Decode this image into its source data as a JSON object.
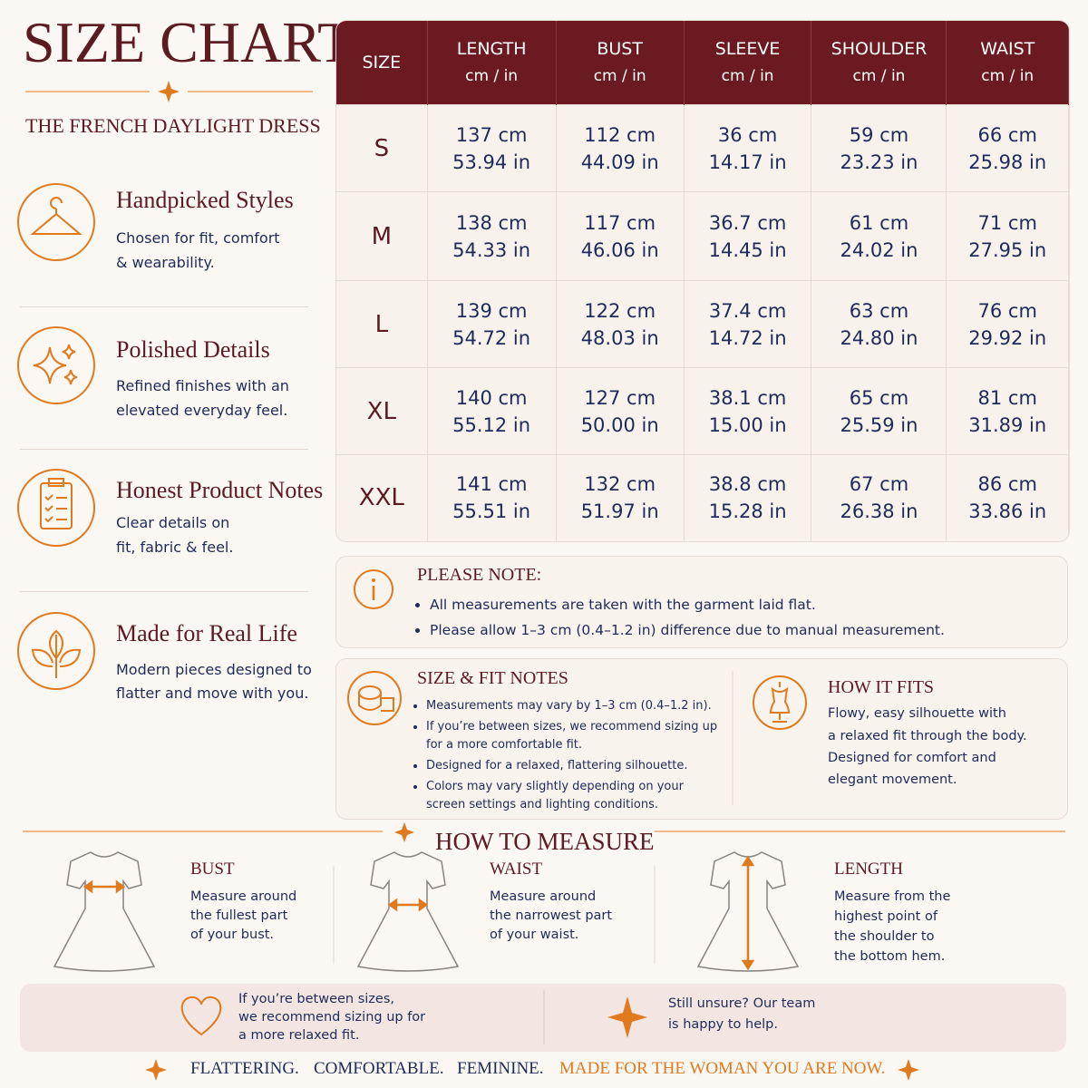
{
  "header": {
    "title": "SIZE CHART",
    "subtitle": "THE FRENCH DAYLIGHT DRESS"
  },
  "features": [
    {
      "title": "Handpicked Styles",
      "lines": [
        "Chosen for fit, comfort",
        "& wearability."
      ]
    },
    {
      "title": "Polished Details",
      "lines": [
        "Refined finishes with an",
        "elevated everyday feel."
      ]
    },
    {
      "title": "Honest Product Notes",
      "lines": [
        "Clear details on",
        "fit, fabric & feel."
      ]
    },
    {
      "title": "Made for Real Life",
      "lines": [
        "Modern pieces designed to",
        "flatter and move with you."
      ]
    }
  ],
  "table": {
    "columns": [
      {
        "name": "SIZE"
      },
      {
        "name": "LENGTH",
        "unit": "cm / in"
      },
      {
        "name": "BUST",
        "unit": "cm / in"
      },
      {
        "name": "SLEEVE",
        "unit": "cm / in"
      },
      {
        "name": "SHOULDER",
        "unit": "cm / in"
      },
      {
        "name": "WAIST",
        "unit": "cm / in"
      }
    ],
    "rows": [
      {
        "size": "S",
        "cells": [
          [
            "137 cm",
            "53.94 in"
          ],
          [
            "112 cm",
            "44.09 in"
          ],
          [
            "36 cm",
            "14.17 in"
          ],
          [
            "59 cm",
            "23.23 in"
          ],
          [
            "66 cm",
            "25.98 in"
          ]
        ]
      },
      {
        "size": "M",
        "cells": [
          [
            "138 cm",
            "54.33 in"
          ],
          [
            "117 cm",
            "46.06 in"
          ],
          [
            "36.7 cm",
            "14.45 in"
          ],
          [
            "61 cm",
            "24.02 in"
          ],
          [
            "71 cm",
            "27.95 in"
          ]
        ]
      },
      {
        "size": "L",
        "cells": [
          [
            "139 cm",
            "54.72 in"
          ],
          [
            "122 cm",
            "48.03 in"
          ],
          [
            "37.4 cm",
            "14.72 in"
          ],
          [
            "63 cm",
            "24.80 in"
          ],
          [
            "76 cm",
            "29.92 in"
          ]
        ]
      },
      {
        "size": "XL",
        "cells": [
          [
            "140 cm",
            "55.12 in"
          ],
          [
            "127 cm",
            "50.00 in"
          ],
          [
            "38.1 cm",
            "15.00 in"
          ],
          [
            "65 cm",
            "25.59 in"
          ],
          [
            "81 cm",
            "31.89 in"
          ]
        ]
      },
      {
        "size": "XXL",
        "cells": [
          [
            "141 cm",
            "55.51 in"
          ],
          [
            "132 cm",
            "51.97 in"
          ],
          [
            "38.8 cm",
            "15.28 in"
          ],
          [
            "67 cm",
            "26.38 in"
          ],
          [
            "86 cm",
            "33.86 in"
          ]
        ]
      }
    ]
  },
  "note": {
    "title": "PLEASE NOTE:",
    "items": [
      "All measurements are taken with the garment laid flat.",
      "Please allow 1–3 cm (0.4–1.2 in) difference due to manual measurement."
    ]
  },
  "fit_notes": {
    "title": "SIZE & FIT NOTES",
    "items": [
      "Measurements may vary by 1–3 cm (0.4–1.2 in).",
      "If you’re between sizes, we recommend sizing up for a more comfortable fit.",
      "Designed for a relaxed, flattering silhouette.",
      "Colors may vary slightly depending on your screen settings and lighting conditions."
    ]
  },
  "how_it_fits": {
    "title": "HOW IT FITS",
    "lines": [
      "Flowy, easy silhouette with",
      "a relaxed fit through the body.",
      "Designed for comfort and",
      "elegant movement."
    ]
  },
  "how_to_measure": {
    "title": "HOW TO MEASURE",
    "items": [
      {
        "title": "BUST",
        "lines": [
          "Measure around",
          "the fullest part",
          "of your bust."
        ]
      },
      {
        "title": "WAIST",
        "lines": [
          "Measure around",
          "the narrowest part",
          "of your waist."
        ]
      },
      {
        "title": "LENGTH",
        "lines": [
          "Measure from the",
          "highest point of",
          "the shoulder to",
          "the bottom hem."
        ]
      }
    ]
  },
  "tips": [
    {
      "lines": [
        "If you’re between sizes,",
        "we recommend sizing up for",
        "a more relaxed fit."
      ]
    },
    {
      "lines": [
        "Still unsure? Our team",
        "is happy to help."
      ]
    }
  ],
  "footer": {
    "words": [
      "FLATTERING.",
      "COMFORTABLE.",
      "FEMININE."
    ],
    "highlight": "MADE FOR THE WOMAN YOU ARE NOW."
  }
}
